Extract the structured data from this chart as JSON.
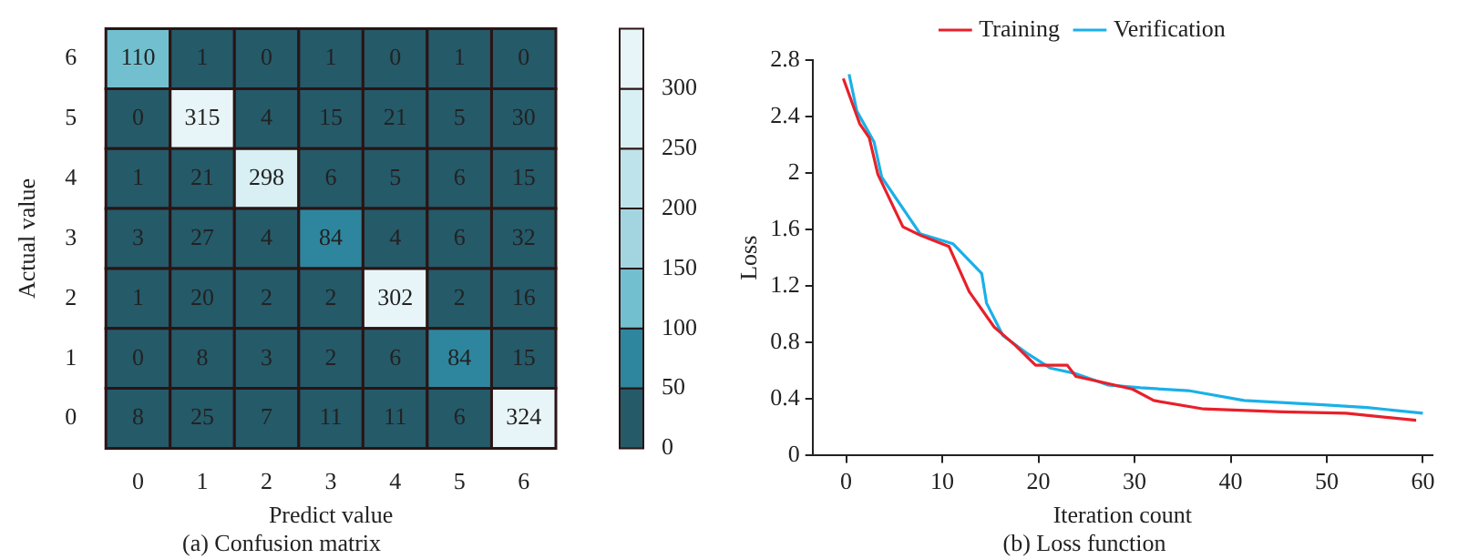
{
  "chart_data": [
    {
      "type": "heatmap",
      "title": "(a) Confusion matrix",
      "xlabel": "Predict value",
      "ylabel": "Actual value",
      "categories": [
        "0",
        "1",
        "2",
        "3",
        "4",
        "5",
        "6"
      ],
      "y_categories": [
        "6",
        "5",
        "4",
        "3",
        "2",
        "1",
        "0"
      ],
      "cells": [
        [
          110,
          1,
          0,
          1,
          0,
          1,
          0
        ],
        [
          0,
          315,
          4,
          15,
          21,
          5,
          30
        ],
        [
          1,
          21,
          298,
          6,
          5,
          6,
          15
        ],
        [
          3,
          27,
          4,
          84,
          4,
          6,
          32
        ],
        [
          1,
          20,
          2,
          2,
          302,
          2,
          16
        ],
        [
          0,
          8,
          3,
          2,
          6,
          84,
          15
        ],
        [
          8,
          25,
          7,
          11,
          11,
          6,
          324
        ]
      ],
      "data_labels": true,
      "clim": [
        0,
        350
      ],
      "cticks": [
        0,
        50,
        100,
        150,
        200,
        250,
        300
      ],
      "colors": [
        "#255a69",
        "#2e869e",
        "#72c0cf",
        "#a2d5e0",
        "#bfe3ea",
        "#d8eff3",
        "#e8f5f8"
      ]
    },
    {
      "type": "line",
      "title": "(b) Loss function",
      "xlabel": "Iteration count",
      "ylabel": "Loss",
      "xlim": [
        -3.5,
        61
      ],
      "xticks": [
        0,
        10,
        20,
        30,
        40,
        50,
        60
      ],
      "ylim": [
        0,
        2.8
      ],
      "yticks": [
        0,
        0.4,
        0.8,
        1.2,
        1.6,
        2.0,
        2.4,
        2.8
      ],
      "legend": "top",
      "grid": false,
      "series": [
        {
          "name": "Training",
          "color": "#e8202a",
          "x": [
            -0.3,
            1.4,
            2.4,
            3.3,
            5.9,
            7.7,
            10.7,
            12.8,
            15.4,
            17.6,
            19.7,
            23.0,
            23.9,
            26.6,
            29.8,
            32.0,
            37.2,
            45.4,
            52.0,
            59.3
          ],
          "values": [
            2.67,
            2.35,
            2.25,
            1.99,
            1.62,
            1.56,
            1.48,
            1.16,
            0.91,
            0.78,
            0.64,
            0.64,
            0.56,
            0.52,
            0.47,
            0.39,
            0.33,
            0.31,
            0.3,
            0.25
          ]
        },
        {
          "name": "Verification",
          "color": "#1ab0e8",
          "x": [
            0.3,
            1.1,
            2.9,
            3.7,
            7.7,
            11.1,
            14.1,
            14.6,
            16.3,
            18.9,
            21.2,
            23.9,
            27.2,
            30.6,
            35.6,
            41.4,
            49.6,
            54.2,
            60
          ],
          "values": [
            2.7,
            2.44,
            2.22,
            1.97,
            1.57,
            1.5,
            1.29,
            1.08,
            0.85,
            0.72,
            0.62,
            0.58,
            0.5,
            0.48,
            0.46,
            0.39,
            0.36,
            0.34,
            0.3
          ]
        }
      ]
    }
  ]
}
